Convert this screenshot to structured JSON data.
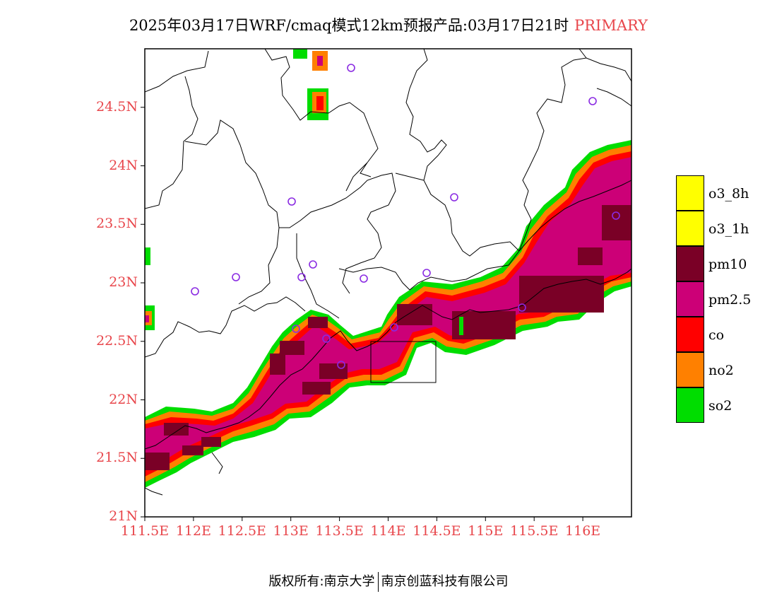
{
  "title": {
    "main": "2025年03月17日WRF/cmaq模式12km预报产品:03月17日21时",
    "suffix": "PRIMARY",
    "suffix_color": "#e8474c"
  },
  "map": {
    "lon_range": [
      111.5,
      116.5
    ],
    "lat_range": [
      21.0,
      25.0
    ],
    "y_ticks": [
      "21N",
      "21.5N",
      "22N",
      "22.5N",
      "23N",
      "23.5N",
      "24N",
      "24.5N"
    ],
    "x_ticks": [
      "111.5E",
      "112E",
      "112.5E",
      "113E",
      "113.5E",
      "114E",
      "114.5E",
      "115E",
      "115.5E",
      "116E"
    ],
    "tick_color": "#e8474c",
    "station_marker": "circle-icon",
    "station_color": "#8a2be2"
  },
  "legend": {
    "items": [
      {
        "label": "o3_8h",
        "color": "#ffff00"
      },
      {
        "label": "o3_1h",
        "color": "#ffff00"
      },
      {
        "label": "pm10",
        "color": "#7a0026"
      },
      {
        "label": "pm2.5",
        "color": "#cc0077"
      },
      {
        "label": "co",
        "color": "#ff0000"
      },
      {
        "label": "no2",
        "color": "#ff8000"
      },
      {
        "label": "so2",
        "color": "#00dd00"
      }
    ]
  },
  "footer": {
    "left": "版权所有:南京大学",
    "right": "南京创蓝科技有限公司"
  }
}
